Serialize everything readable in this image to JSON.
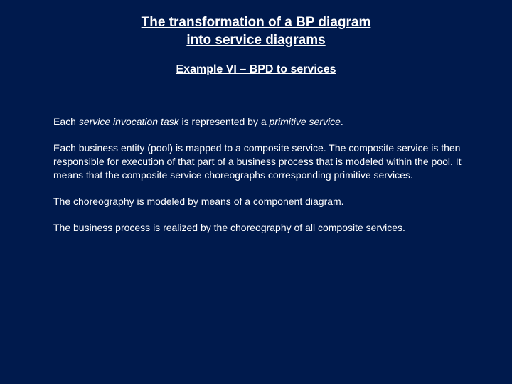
{
  "background_color": "#001a4d",
  "text_color": "#ffffff",
  "font_family": "Verdana",
  "title": {
    "line1": "The transformation of a BP diagram",
    "line2": "into service diagrams",
    "fontsize": 19,
    "weight": "bold",
    "underline": true,
    "align": "center"
  },
  "subtitle": {
    "text": "Example VI – BPD to services",
    "fontsize": 16,
    "weight": "bold",
    "underline": true,
    "align": "center"
  },
  "paragraphs": [
    {
      "runs": [
        {
          "text": "Each ",
          "italic": false
        },
        {
          "text": "service invocation task",
          "italic": true
        },
        {
          "text": " is represented by a ",
          "italic": false
        },
        {
          "text": "primitive service",
          "italic": true
        },
        {
          "text": ".",
          "italic": false
        }
      ]
    },
    {
      "runs": [
        {
          "text": "Each business entity (pool) is mapped to a composite service. The composite service is then responsible for execution of that part of a business process that is modeled within the pool. It means that the composite service choreographs corresponding primitive services.",
          "italic": false
        }
      ]
    },
    {
      "runs": [
        {
          "text": "The choreography is modeled by means of a component diagram.",
          "italic": false
        }
      ]
    },
    {
      "runs": [
        {
          "text": "The business process is realized by the choreography of all composite services.",
          "italic": false
        }
      ]
    }
  ],
  "body_fontsize": 14
}
